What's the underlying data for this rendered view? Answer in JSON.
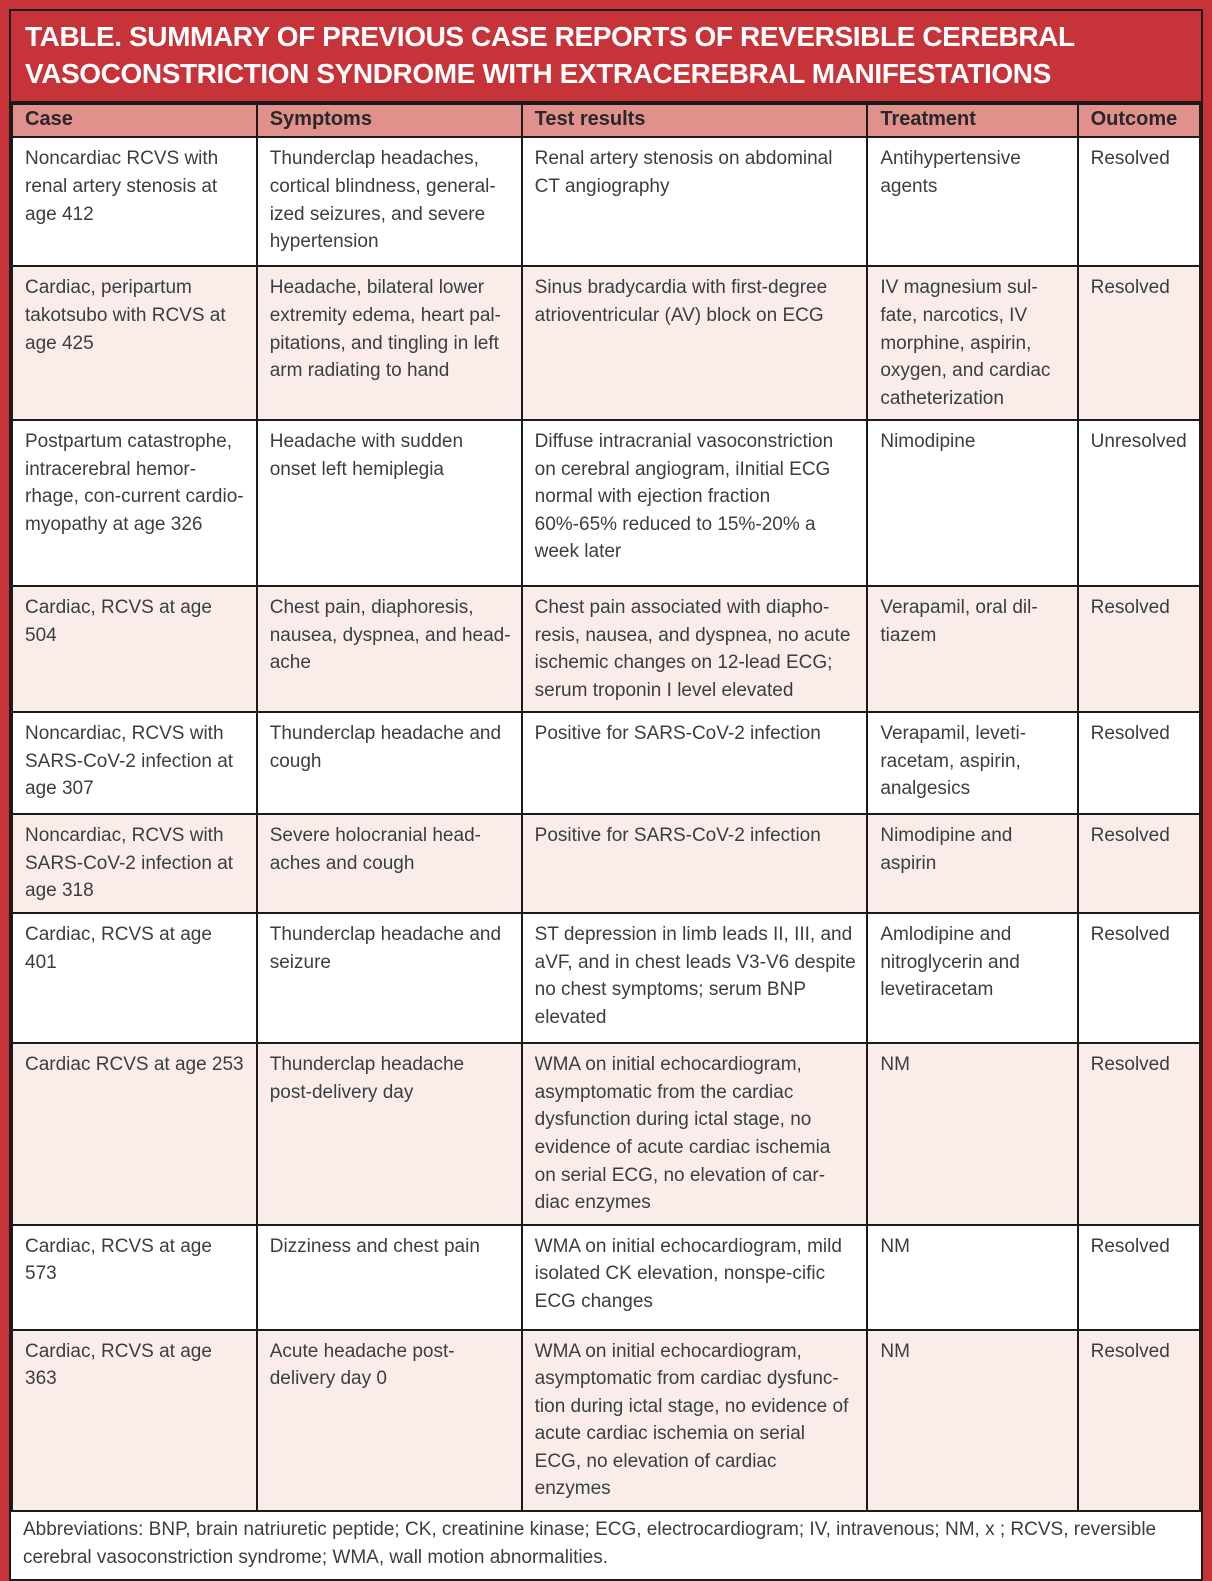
{
  "title": "TABLE. SUMMARY OF PREVIOUS CASE REPORTS OF REVERSIBLE CEREBRAL VASOCONSTRICTION SYNDROME WITH EXTRACEREBRAL MANIFESTATIONS",
  "table": {
    "columns": [
      "Case",
      "Symptoms",
      "Test results",
      "Treatment",
      "Outcome"
    ],
    "rows": [
      [
        "Noncardiac RCVS with renal artery stenosis at age 412",
        "Thunderclap headaches, cortical blindness, general-ized seizures, and severe hypertension",
        "Renal artery stenosis on abdominal CT angiography",
        "Antihypertensive agents",
        "Resolved"
      ],
      [
        "Cardiac, peripartum takotsubo with RCVS at age 425",
        "Headache, bilateral lower extremity edema, heart pal-pitations, and tingling in left arm radiating to hand",
        "Sinus bradycardia with first-degree atrioventricular (AV) block on ECG",
        "IV magnesium sul-fate, narcotics, IV morphine, aspirin, oxygen, and cardiac catheterization",
        "Resolved"
      ],
      [
        "Postpartum catastrophe, intracerebral hemor-rhage, con-current cardio-myopathy at age 326",
        "Headache with sudden onset left hemiplegia",
        "Diffuse intracranial vasoconstriction on cerebral angiogram, iInitial ECG normal with ejection fraction 60%-65% reduced to 15%-20% a week later",
        "Nimodipine",
        "Unresolved"
      ],
      [
        "Cardiac, RCVS at age 504",
        "Chest pain, diaphoresis, nausea, dyspnea, and head-ache",
        "Chest pain associated with diapho-resis, nausea, and dyspnea, no acute ischemic changes on 12-lead ECG; serum troponin I level elevated",
        "Verapamil, oral dil-tiazem",
        "Resolved"
      ],
      [
        "Noncardiac, RCVS with SARS-CoV-2 infection at age 307",
        "Thunderclap headache and cough",
        "Positive for SARS-CoV-2 infection",
        "Verapamil, leveti-racetam, aspirin, analgesics",
        "Resolved"
      ],
      [
        "Noncardiac, RCVS with SARS-CoV-2 infection at age 318",
        "Severe holocranial head-aches and cough",
        "Positive for SARS-CoV-2 infection",
        "Nimodipine and aspirin",
        "Resolved"
      ],
      [
        "Cardiac, RCVS at age 401",
        "Thunderclap headache and seizure",
        "ST depression in limb leads II, III, and aVF, and in chest leads V3-V6 despite no chest symptoms; serum BNP elevated",
        "Amlodipine and nitroglycerin and levetiracetam",
        "Resolved"
      ],
      [
        "Cardiac RCVS at age 253",
        "Thunderclap headache post-delivery day",
        "WMA on initial echocardiogram, asymptomatic from the cardiac dysfunction during ictal stage, no evidence of acute cardiac ischemia on serial ECG, no elevation of car-diac enzymes",
        "NM",
        "Resolved"
      ],
      [
        "Cardiac, RCVS at age 573",
        "Dizziness and chest pain",
        "WMA on initial echocardiogram, mild isolated CK elevation, nonspe-cific ECG changes",
        "NM",
        "Resolved"
      ],
      [
        "Cardiac, RCVS at age 363",
        "Acute headache post-delivery day 0",
        "WMA on initial echocardiogram, asymptomatic from cardiac dysfunc-tion during ictal stage, no evidence of acute cardiac ischemia on serial ECG, no  elevation of cardiac enzymes",
        "NM",
        "Resolved"
      ]
    ]
  },
  "footnote": "Abbreviations: BNP, brain natriuretic peptide; CK, creatinine kinase; ECG, electrocardiogram; IV, intravenous; NM, x ; RCVS, reversible cerebral vasoconstriction syndrome; WMA, wall motion abnormalities.",
  "colors": {
    "title_bg": "#C63339",
    "header_bg": "#E2908C",
    "row_alt_bg": "#FAEDE9",
    "frame": "#C63339",
    "border": "#1B1B1B"
  }
}
